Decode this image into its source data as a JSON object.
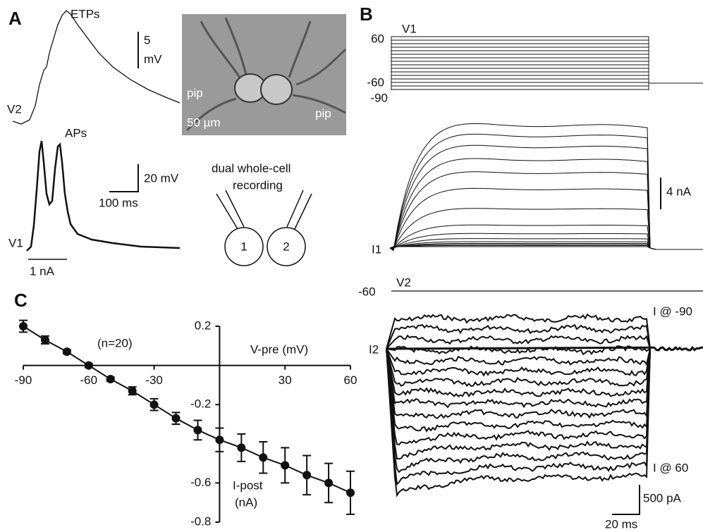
{
  "panel_a": {
    "label": "A",
    "etps": "ETPs",
    "v2": "V2",
    "scale_5": "5",
    "scale_mv": "mV",
    "aps": "APs",
    "scale_20mv": "20 mV",
    "scale_100ms": "100 ms",
    "v1": "V1",
    "current": "1 nA",
    "pip_left": "pip",
    "pip_right": "pip",
    "scale_um": "50 µm",
    "recording_1": "dual whole-cell",
    "recording_2": "recording",
    "cell_1": "1",
    "cell_2": "2"
  },
  "panel_b": {
    "label": "B",
    "v1": "V1",
    "v_60": "60",
    "v_minus60": "-60",
    "v_minus90": "-90",
    "scale_4na": "4 nA",
    "i1": "I1",
    "v2_level": "-60",
    "v2": "V2",
    "i_at_minus90": "I @ -90",
    "i2": "I2",
    "i_at_60": "I @ 60",
    "scale_500pa": "500 pA",
    "scale_20ms": "20 ms"
  },
  "chart_data": {
    "type": "line",
    "panel_label": "C",
    "annotation": "(n=20)",
    "x_label": "V-pre (mV)",
    "y_label_lines": [
      "I-post",
      "(nA)"
    ],
    "x": [
      -90,
      -80,
      -70,
      -60,
      -50,
      -40,
      -30,
      -20,
      -10,
      0,
      10,
      20,
      30,
      40,
      50,
      60
    ],
    "values": [
      0.2,
      0.13,
      0.07,
      0.0,
      -0.07,
      -0.13,
      -0.2,
      -0.27,
      -0.33,
      -0.38,
      -0.42,
      -0.47,
      -0.51,
      -0.56,
      -0.6,
      -0.65
    ],
    "errors": [
      0.03,
      0.02,
      0.01,
      0.01,
      0.01,
      0.02,
      0.03,
      0.03,
      0.05,
      0.06,
      0.07,
      0.08,
      0.09,
      0.1,
      0.1,
      0.11
    ],
    "color": "#111111",
    "xlim": [
      -90,
      60
    ],
    "ylim": [
      -0.8,
      0.2
    ],
    "xticks": [
      -90,
      -60,
      -30,
      30,
      60
    ],
    "yticks": [
      0.2,
      -0.2,
      -0.6,
      -0.8
    ]
  }
}
